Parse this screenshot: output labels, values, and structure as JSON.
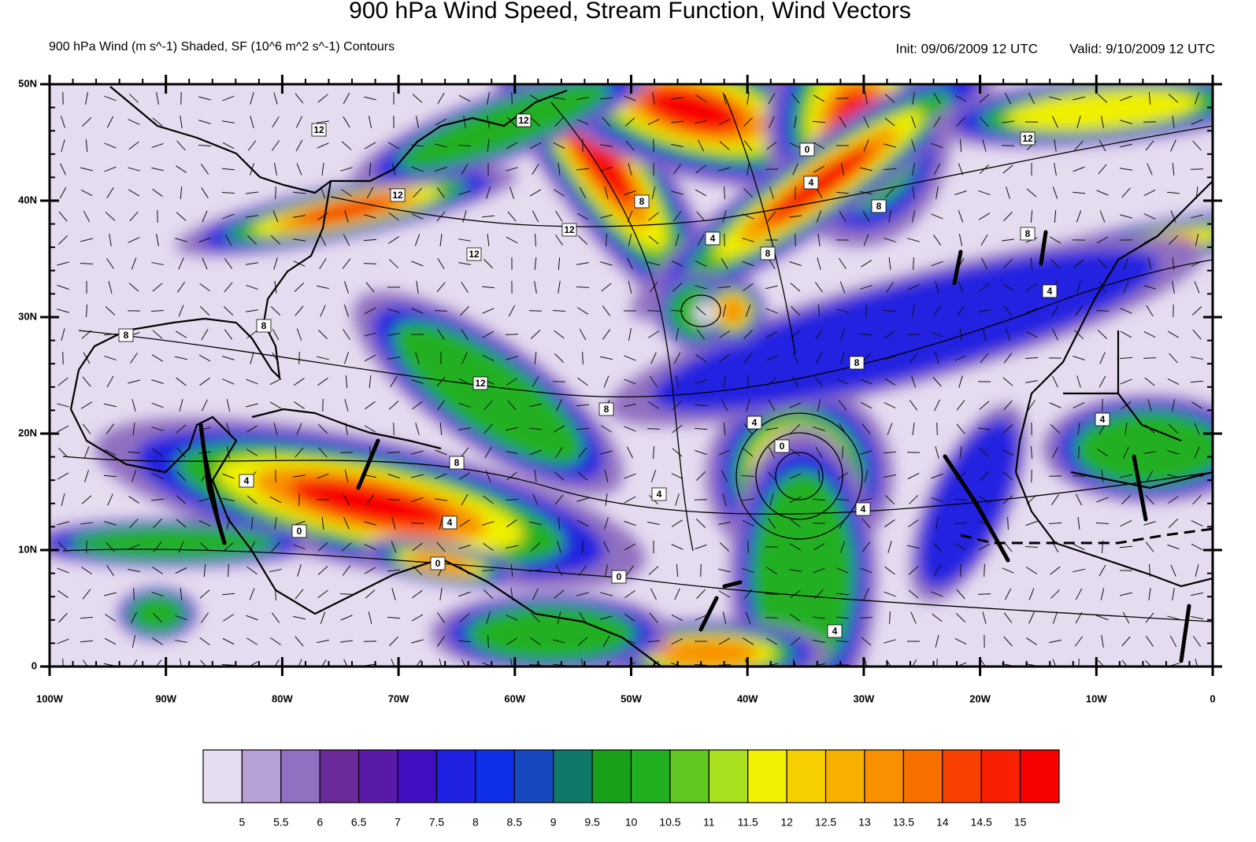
{
  "title": "900 hPa Wind Speed, Stream Function, Wind Vectors",
  "subtitle": "900 hPa Wind (m s^-1) Shaded, SF (10^6 m^2 s^-1) Contours",
  "init": "Init: 09/06/2009  12 UTC",
  "valid": "Valid: 9/10/2009 12 UTC",
  "map": {
    "lon_range": [
      -100,
      0
    ],
    "lat_range": [
      0,
      50
    ],
    "lon_ticks": [
      {
        "value": -100,
        "label": "100W"
      },
      {
        "value": -90,
        "label": "90W"
      },
      {
        "value": -80,
        "label": "80W"
      },
      {
        "value": -70,
        "label": "70W"
      },
      {
        "value": -60,
        "label": "60W"
      },
      {
        "value": -50,
        "label": "50W"
      },
      {
        "value": -40,
        "label": "40W"
      },
      {
        "value": -30,
        "label": "30W"
      },
      {
        "value": -20,
        "label": "20W"
      },
      {
        "value": -10,
        "label": "10W"
      },
      0
    ],
    "lat_ticks": [
      0,
      {
        "value": 10,
        "label": "10N"
      },
      {
        "value": 20,
        "label": "20N"
      },
      {
        "value": 30,
        "label": "30N"
      },
      {
        "value": 40,
        "label": "40N"
      },
      {
        "value": 50,
        "label": "50N"
      }
    ],
    "contour_labels": [
      12,
      12,
      12,
      12,
      12,
      12,
      12,
      8,
      8,
      8,
      8,
      8,
      8,
      8,
      8,
      8,
      4,
      4,
      4,
      4,
      4,
      4,
      4,
      4,
      4,
      4,
      0,
      0,
      0,
      0,
      0
    ]
  },
  "colorbar": {
    "colors": [
      "#e6dcf0",
      "#b8a0d8",
      "#9070c0",
      "#6a2a9a",
      "#5a1aa8",
      "#4010c0",
      "#2020e0",
      "#1030e8",
      "#1848c0",
      "#107868",
      "#18a018",
      "#20b020",
      "#60c820",
      "#a8e020",
      "#f0f000",
      "#f8d000",
      "#f8b000",
      "#f89000",
      "#f87000",
      "#f84000",
      "#f82000",
      "#f80000"
    ],
    "levels": [
      5,
      5.5,
      6,
      6.5,
      7,
      7.5,
      8,
      8.5,
      9,
      9.5,
      10,
      10.5,
      11,
      11.5,
      12,
      12.5,
      13,
      13.5,
      14,
      14.5,
      15
    ]
  }
}
